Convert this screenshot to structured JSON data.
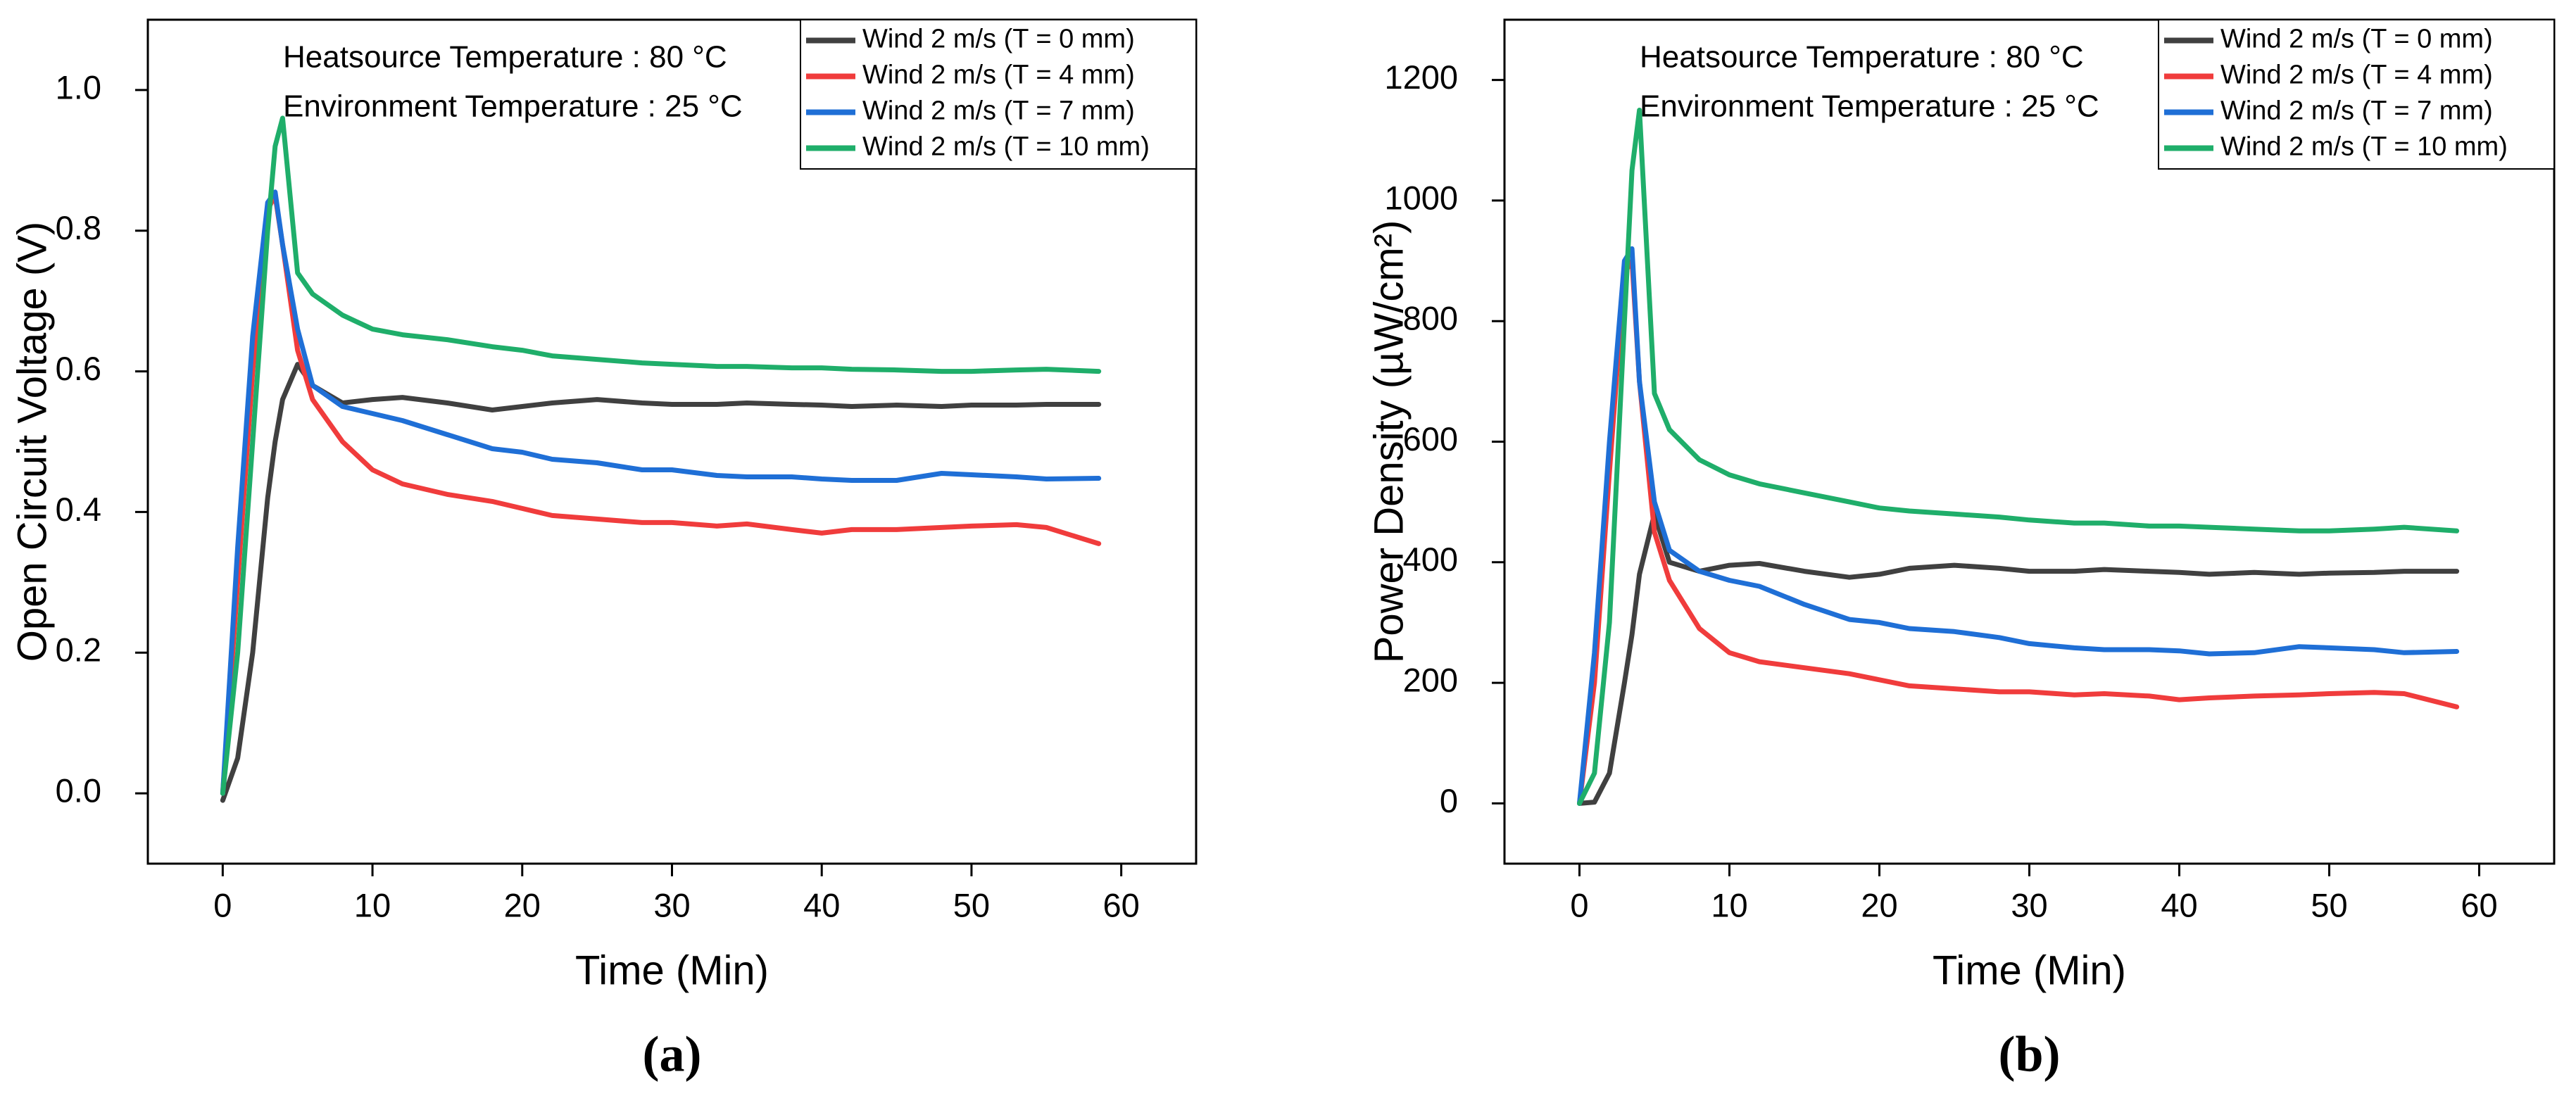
{
  "chart_data": [
    {
      "type": "line",
      "xlabel": "Time (Min)",
      "ylabel": "Open Circuit Voltage (V)",
      "caption": "(a)",
      "annotations": [
        "Heatsource Temperature : 80 °C",
        "Environment Temperature : 25 °C"
      ],
      "legend": "upper right",
      "xlim": [
        -5,
        65
      ],
      "xticks": [
        0,
        10,
        20,
        30,
        40,
        50,
        60
      ],
      "ylim": [
        -0.1,
        1.1
      ],
      "yticks": [
        {
          "value": 0,
          "label": "0.0"
        },
        0.2,
        0.4,
        0.6,
        0.8,
        {
          "value": 1,
          "label": "1.0"
        }
      ],
      "x": [
        0,
        1,
        2,
        3,
        3.5,
        4,
        5,
        6,
        8,
        10,
        12,
        15,
        18,
        20,
        22,
        25,
        28,
        30,
        33,
        35,
        38,
        40,
        42,
        45,
        48,
        50,
        53,
        55,
        58.5
      ],
      "series": [
        {
          "name": "Wind 2 m/s (T = 0 mm)",
          "color": "#404040",
          "values": [
            -0.01,
            0.05,
            0.2,
            0.42,
            0.5,
            0.56,
            0.61,
            0.58,
            0.555,
            0.56,
            0.563,
            0.555,
            0.545,
            0.55,
            0.555,
            0.56,
            0.555,
            0.553,
            0.553,
            0.555,
            0.553,
            0.552,
            0.55,
            0.552,
            0.55,
            0.552,
            0.552,
            0.553,
            0.553
          ]
        },
        {
          "name": "Wind 2 m/s (T = 4 mm)",
          "color": "#f03c3c",
          "values": [
            0,
            0.3,
            0.6,
            0.83,
            0.85,
            0.78,
            0.63,
            0.56,
            0.5,
            0.46,
            0.44,
            0.425,
            0.415,
            0.405,
            0.395,
            0.39,
            0.385,
            0.385,
            0.38,
            0.383,
            0.375,
            0.37,
            0.375,
            0.375,
            0.378,
            0.38,
            0.382,
            0.378,
            0.355
          ]
        },
        {
          "name": "Wind 2 m/s (T = 7 mm)",
          "color": "#1f6fd6",
          "values": [
            0,
            0.35,
            0.65,
            0.84,
            0.855,
            0.78,
            0.66,
            0.58,
            0.55,
            0.54,
            0.53,
            0.51,
            0.49,
            0.485,
            0.475,
            0.47,
            0.46,
            0.46,
            0.452,
            0.45,
            0.45,
            0.447,
            0.445,
            0.445,
            0.455,
            0.453,
            0.45,
            0.447,
            0.448
          ]
        },
        {
          "name": "Wind 2 m/s (T = 10 mm)",
          "color": "#1fae6a",
          "values": [
            0,
            0.2,
            0.5,
            0.8,
            0.92,
            0.96,
            0.74,
            0.71,
            0.68,
            0.66,
            0.652,
            0.645,
            0.635,
            0.63,
            0.622,
            0.617,
            0.612,
            0.61,
            0.607,
            0.607,
            0.605,
            0.605,
            0.603,
            0.602,
            0.6,
            0.6,
            0.602,
            0.603,
            0.6
          ]
        }
      ]
    },
    {
      "type": "line",
      "xlabel": "Time (Min)",
      "ylabel": "Power Density (µW/cm²)",
      "caption": "(b)",
      "annotations": [
        "Heatsource Temperature : 80 °C",
        "Environment Temperature : 25 °C"
      ],
      "legend": "upper right",
      "xlim": [
        -5,
        65
      ],
      "xticks": [
        0,
        10,
        20,
        30,
        40,
        50,
        60
      ],
      "ylim": [
        -100,
        1300
      ],
      "yticks": [
        0,
        200,
        400,
        600,
        800,
        1000,
        1200
      ],
      "x": [
        0,
        1,
        2,
        3,
        3.5,
        4,
        5,
        6,
        8,
        10,
        12,
        15,
        18,
        20,
        22,
        25,
        28,
        30,
        33,
        35,
        38,
        40,
        42,
        45,
        48,
        50,
        53,
        55,
        58.5
      ],
      "series": [
        {
          "name": "Wind 2 m/s (T = 0 mm)",
          "color": "#404040",
          "values": [
            0,
            2,
            50,
            200,
            280,
            380,
            480,
            400,
            385,
            395,
            398,
            385,
            375,
            380,
            390,
            395,
            390,
            385,
            385,
            388,
            385,
            383,
            380,
            383,
            380,
            382,
            383,
            385,
            385
          ]
        },
        {
          "name": "Wind 2 m/s (T = 4 mm)",
          "color": "#f03c3c",
          "values": [
            0,
            200,
            550,
            880,
            900,
            700,
            450,
            370,
            290,
            250,
            235,
            225,
            215,
            205,
            195,
            190,
            185,
            185,
            180,
            182,
            178,
            172,
            175,
            178,
            180,
            182,
            184,
            182,
            160
          ]
        },
        {
          "name": "Wind 2 m/s (T = 7 mm)",
          "color": "#1f6fd6",
          "values": [
            0,
            250,
            600,
            900,
            920,
            700,
            500,
            420,
            385,
            370,
            360,
            330,
            305,
            300,
            290,
            285,
            275,
            265,
            258,
            255,
            255,
            253,
            248,
            250,
            260,
            258,
            255,
            250,
            252
          ]
        },
        {
          "name": "Wind 2 m/s (T = 10 mm)",
          "color": "#1fae6a",
          "values": [
            0,
            50,
            300,
            800,
            1050,
            1150,
            680,
            620,
            570,
            545,
            530,
            515,
            500,
            490,
            485,
            480,
            475,
            470,
            465,
            465,
            460,
            460,
            458,
            455,
            452,
            452,
            455,
            458,
            452
          ]
        }
      ]
    }
  ]
}
